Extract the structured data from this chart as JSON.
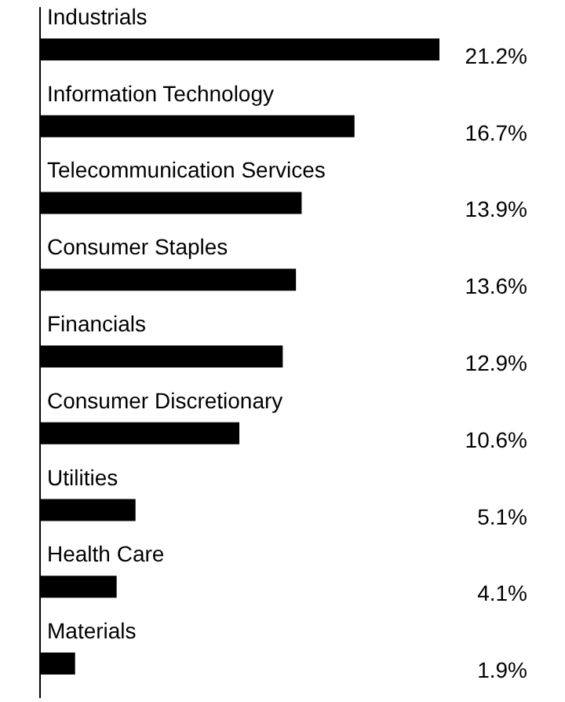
{
  "chart_data": {
    "type": "bar",
    "orientation": "horizontal",
    "categories": [
      "Industrials",
      "Information Technology",
      "Telecommunication Services",
      "Consumer Staples",
      "Financials",
      "Consumer Discretionary",
      "Utilities",
      "Health Care",
      "Materials"
    ],
    "values": [
      21.2,
      16.7,
      13.9,
      13.6,
      12.9,
      10.6,
      5.1,
      4.1,
      1.9
    ],
    "value_labels": [
      "21.2%",
      "16.7%",
      "13.9%",
      "13.6%",
      "12.9%",
      "10.6%",
      "5.1%",
      "4.1%",
      "1.9%"
    ],
    "color": "#000000"
  }
}
